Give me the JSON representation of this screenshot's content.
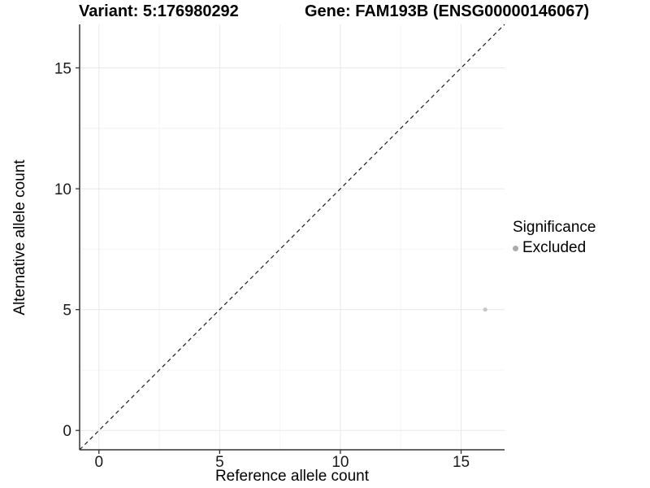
{
  "titles": {
    "variant": "Variant: 5:176980292",
    "gene": "Gene: FAM193B (ENSG00000146067)"
  },
  "legend": {
    "title": "Significance",
    "items": [
      {
        "label": "Excluded",
        "color": "#ABABAB"
      }
    ]
  },
  "chart_data": {
    "type": "scatter",
    "title_left": "Variant: 5:176980292",
    "title_right": "Gene: FAM193B (ENSG00000146067)",
    "xlabel": "Reference allele count",
    "ylabel": "Alternative allele count",
    "xlim": [
      -0.8,
      16.8
    ],
    "ylim": [
      -0.8,
      16.8
    ],
    "x_ticks": [
      0,
      5,
      10,
      15
    ],
    "y_ticks": [
      0,
      5,
      10,
      15
    ],
    "x_minor_ticks": [
      2.5,
      7.5,
      12.5
    ],
    "y_minor_ticks": [
      2.5,
      7.5,
      12.5
    ],
    "grid": true,
    "legend_position": "right",
    "series": [
      {
        "name": "Excluded",
        "color": "#C4C4C4",
        "point_radius": 2.5,
        "points": [
          {
            "x": 16,
            "y": 5
          }
        ]
      }
    ],
    "reference_line": {
      "type": "identity",
      "equation": "y = x",
      "style": "dashed",
      "color": "#1A1A1A"
    }
  },
  "colors": {
    "background": "#FFFFFF",
    "grid_major": "#E8E8E8",
    "grid_minor": "#F4F4F4",
    "axis_line": "#333333",
    "tick_text": "#1A1A1A"
  }
}
